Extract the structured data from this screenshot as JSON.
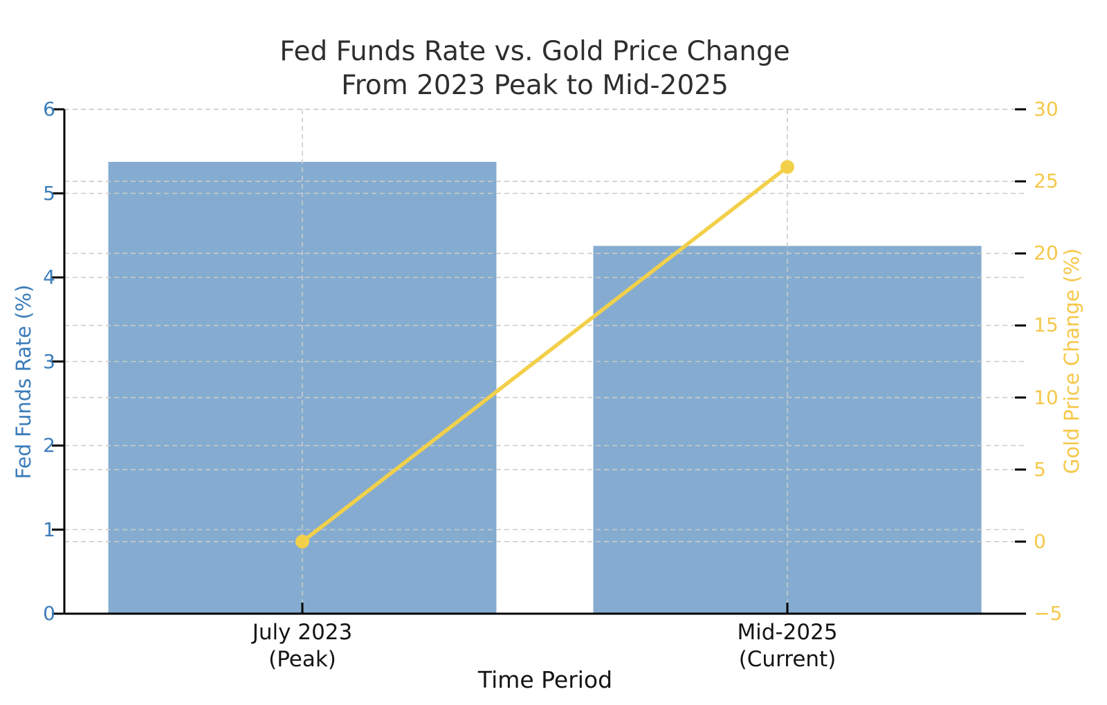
{
  "page": {
    "background": "#ffffff"
  },
  "chart_data": {
    "type": "combo-bar-line",
    "title": "Fed Funds Rate vs. Gold Price Change",
    "subtitle": "From 2023 Peak to Mid-2025",
    "title_color": "#2e2e2e",
    "xlabel": "Time Period",
    "categories": [
      [
        "July 2023",
        "(Peak)"
      ],
      [
        "Mid-2025",
        "(Current)"
      ]
    ],
    "series": [
      {
        "name": "Fed Funds Rate",
        "type": "bar",
        "axis": "left",
        "values": [
          5.375,
          4.375
        ],
        "color": "#85acd0"
      },
      {
        "name": "Gold Price Change",
        "type": "line",
        "axis": "right",
        "values": [
          0,
          26
        ],
        "color": "#f2d04a",
        "marker": "circle"
      }
    ],
    "axes": {
      "left": {
        "label": "Fed Funds Rate (%)",
        "color": "#3b7cba",
        "min": 0,
        "max": 6,
        "ticks": [
          0,
          1,
          2,
          3,
          4,
          5,
          6
        ]
      },
      "right": {
        "label": "Gold Price Change (%)",
        "color": "#f5c84a",
        "min": -5,
        "max": 30,
        "ticks": [
          -5,
          0,
          5,
          10,
          15,
          20,
          25,
          30
        ]
      },
      "x": {
        "tick_color": "#141414"
      }
    },
    "grid": {
      "visible": true,
      "style": "dashed",
      "color": "#cbcbcb"
    },
    "legend": null
  }
}
